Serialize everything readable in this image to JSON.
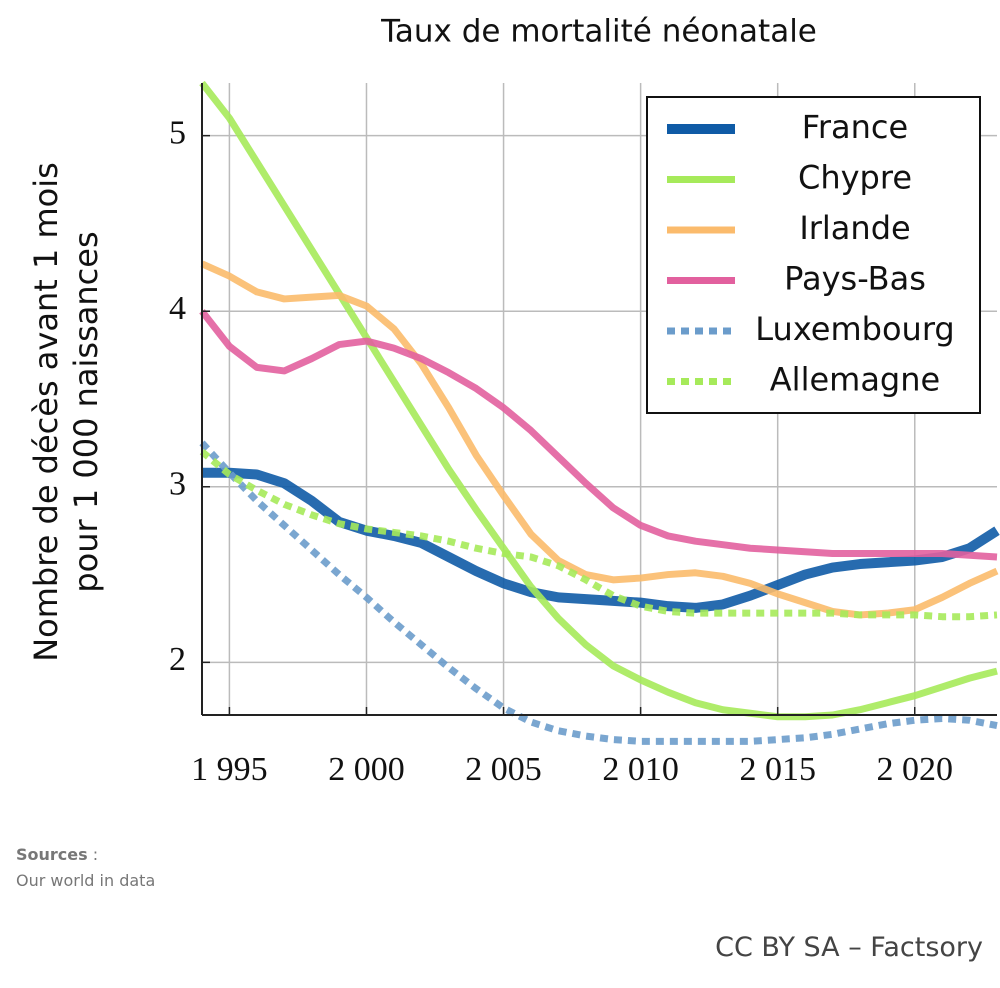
{
  "chart_data": {
    "type": "line",
    "title": "Taux de mortalité néonatale",
    "y_label": [
      "Nombre de décès avant 1 mois",
      "pour 1 000 naissances"
    ],
    "x": [
      1994,
      1995,
      1996,
      1997,
      1998,
      1999,
      2000,
      2001,
      2002,
      2003,
      2004,
      2005,
      2006,
      2007,
      2008,
      2009,
      2010,
      2011,
      2012,
      2013,
      2014,
      2015,
      2016,
      2017,
      2018,
      2019,
      2020,
      2021,
      2022,
      2023
    ],
    "xlim": [
      1994,
      2023
    ],
    "xticks": [
      {
        "value": 1995,
        "label": "1 995"
      },
      {
        "value": 2000,
        "label": "2 000"
      },
      {
        "value": 2005,
        "label": "2 005"
      },
      {
        "value": 2010,
        "label": "2 010"
      },
      {
        "value": 2015,
        "label": "2 015"
      },
      {
        "value": 2020,
        "label": "2 020"
      }
    ],
    "ylim": [
      1.7,
      5.3
    ],
    "yticks": [
      2,
      3,
      4,
      5
    ],
    "grid": true,
    "legend": "top-right",
    "series": [
      {
        "name": "France",
        "color": "#0f5ba6",
        "style": "solid",
        "width": 10,
        "values": [
          3.08,
          3.08,
          3.07,
          3.02,
          2.92,
          2.8,
          2.75,
          2.72,
          2.68,
          2.6,
          2.52,
          2.45,
          2.4,
          2.37,
          2.36,
          2.35,
          2.34,
          2.32,
          2.31,
          2.33,
          2.38,
          2.44,
          2.5,
          2.54,
          2.56,
          2.57,
          2.58,
          2.6,
          2.65,
          2.75
        ]
      },
      {
        "name": "Chypre",
        "color": "#a6ea5a",
        "style": "solid",
        "width": 7,
        "values": [
          5.3,
          5.1,
          4.85,
          4.6,
          4.35,
          4.1,
          3.85,
          3.6,
          3.35,
          3.1,
          2.87,
          2.65,
          2.43,
          2.25,
          2.1,
          1.98,
          1.9,
          1.83,
          1.77,
          1.73,
          1.71,
          1.69,
          1.69,
          1.7,
          1.73,
          1.77,
          1.81,
          1.86,
          1.91,
          1.95
        ]
      },
      {
        "name": "Irlande",
        "color": "#fbbb6c",
        "style": "solid",
        "width": 7,
        "values": [
          4.27,
          4.2,
          4.11,
          4.07,
          4.08,
          4.09,
          4.03,
          3.9,
          3.7,
          3.45,
          3.18,
          2.95,
          2.73,
          2.58,
          2.5,
          2.47,
          2.48,
          2.5,
          2.51,
          2.49,
          2.45,
          2.39,
          2.34,
          2.29,
          2.27,
          2.28,
          2.3,
          2.37,
          2.45,
          2.52
        ]
      },
      {
        "name": "Pays-Bas",
        "color": "#e2609e",
        "style": "solid",
        "width": 7,
        "values": [
          4.0,
          3.8,
          3.68,
          3.66,
          3.73,
          3.81,
          3.83,
          3.79,
          3.73,
          3.65,
          3.56,
          3.45,
          3.32,
          3.17,
          3.02,
          2.88,
          2.78,
          2.72,
          2.69,
          2.67,
          2.65,
          2.64,
          2.63,
          2.62,
          2.62,
          2.62,
          2.62,
          2.62,
          2.61,
          2.6
        ]
      },
      {
        "name": "Luxembourg",
        "color": "#6b9ccb",
        "style": "dotted",
        "width": 7,
        "values": [
          3.25,
          3.08,
          2.92,
          2.78,
          2.64,
          2.5,
          2.37,
          2.23,
          2.1,
          1.97,
          1.85,
          1.74,
          1.66,
          1.61,
          1.58,
          1.56,
          1.55,
          1.55,
          1.55,
          1.55,
          1.55,
          1.56,
          1.57,
          1.59,
          1.62,
          1.65,
          1.67,
          1.68,
          1.67,
          1.64
        ]
      },
      {
        "name": "Allemagne",
        "color": "#a6ea5a",
        "style": "dotted",
        "width": 7,
        "values": [
          3.2,
          3.07,
          2.98,
          2.9,
          2.84,
          2.79,
          2.76,
          2.74,
          2.72,
          2.69,
          2.65,
          2.62,
          2.6,
          2.55,
          2.47,
          2.38,
          2.32,
          2.29,
          2.28,
          2.28,
          2.28,
          2.28,
          2.28,
          2.28,
          2.27,
          2.27,
          2.27,
          2.26,
          2.26,
          2.27
        ]
      }
    ]
  },
  "sources": {
    "label": "Sources",
    "separator": ":",
    "text": "Our world in data"
  },
  "credit": "CC BY SA – Factsory"
}
